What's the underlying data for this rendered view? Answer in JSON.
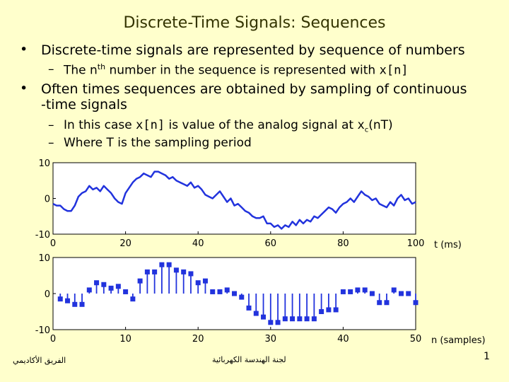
{
  "slide": {
    "title": "Discrete-Time Signals: Sequences",
    "bullets": [
      {
        "text": "Discrete-time signals are represented by sequence of numbers",
        "sub": [
          {
            "pre": "The n",
            "sup": "th",
            "post": " number in the sequence is represented with ",
            "code": "x[n]"
          }
        ]
      },
      {
        "text_line1": "Often times sequences are obtained by sampling of continuous",
        "text_line2": "-time signals",
        "sub": [
          {
            "pre": "In this case ",
            "code": "x[n]",
            "mid": " is value of the analog signal at ",
            "code2": "x",
            "sub": "c",
            "post": "(nT)"
          },
          {
            "text": "Where T is the sampling period"
          }
        ]
      }
    ],
    "footer_left": "الفريق الأكاديمي",
    "footer_center": "لجنة الهندسة الكهربائية",
    "page_number": "1"
  },
  "chart_data": [
    {
      "type": "line",
      "xlabel": "t (ms)",
      "xlim": [
        0,
        100
      ],
      "ylim": [
        -10,
        10
      ],
      "xticks": [
        "0",
        "20",
        "40",
        "60",
        "80",
        "100"
      ],
      "yticks": [
        "10",
        "0",
        "-10"
      ],
      "color": "#2233dd",
      "x": [
        0,
        1,
        2,
        3,
        4,
        5,
        6,
        7,
        8,
        9,
        10,
        11,
        12,
        13,
        14,
        15,
        16,
        17,
        18,
        19,
        20,
        21,
        22,
        23,
        24,
        25,
        26,
        27,
        28,
        29,
        30,
        31,
        32,
        33,
        34,
        35,
        36,
        37,
        38,
        39,
        40,
        41,
        42,
        43,
        44,
        45,
        46,
        47,
        48,
        49,
        50,
        51,
        52,
        53,
        54,
        55,
        56,
        57,
        58,
        59,
        60,
        61,
        62,
        63,
        64,
        65,
        66,
        67,
        68,
        69,
        70,
        71,
        72,
        73,
        74,
        75,
        76,
        77,
        78,
        79,
        80,
        81,
        82,
        83,
        84,
        85,
        86,
        87,
        88,
        89,
        90,
        91,
        92,
        93,
        94,
        95,
        96,
        97,
        98,
        99,
        100
      ],
      "y": [
        -1.5,
        -2,
        -2,
        -3,
        -3.5,
        -3.5,
        -2,
        0.5,
        1.5,
        2,
        3.5,
        2.5,
        3,
        2,
        3.5,
        2.5,
        1.5,
        0,
        -1,
        -1.5,
        1.5,
        3,
        4.5,
        5.5,
        6,
        7,
        6.5,
        6,
        7.5,
        7.5,
        7,
        6.5,
        5.5,
        6,
        5,
        4.5,
        4,
        3.5,
        4.5,
        3,
        3.5,
        2.5,
        1,
        0.5,
        0,
        1,
        2,
        0.5,
        -1,
        0,
        -2,
        -1.5,
        -2.5,
        -3.5,
        -4,
        -5,
        -5.5,
        -5.5,
        -5,
        -7,
        -7,
        -8,
        -7.5,
        -8.5,
        -7.5,
        -8,
        -6.5,
        -7.5,
        -6,
        -7,
        -6,
        -6.5,
        -5,
        -5.5,
        -4.5,
        -3.5,
        -2.5,
        -3,
        -4,
        -2.5,
        -1.5,
        -1,
        0,
        -1,
        0.5,
        2,
        1,
        0.5,
        -0.5,
        0,
        -1.5,
        -2,
        -2.5,
        -1,
        -2,
        0,
        1,
        -0.5,
        0,
        -1.5,
        -1
      ]
    },
    {
      "type": "stem",
      "xlabel": "n (samples)",
      "xlim": [
        0,
        50
      ],
      "ylim": [
        -10,
        10
      ],
      "xticks": [
        "0",
        "10",
        "20",
        "30",
        "40",
        "50"
      ],
      "yticks": [
        "10",
        "0",
        "-10"
      ],
      "color": "#2233dd",
      "x": [
        1,
        2,
        3,
        4,
        5,
        6,
        7,
        8,
        9,
        10,
        11,
        12,
        13,
        14,
        15,
        16,
        17,
        18,
        19,
        20,
        21,
        22,
        23,
        24,
        25,
        26,
        27,
        28,
        29,
        30,
        31,
        32,
        33,
        34,
        35,
        36,
        37,
        38,
        39,
        40,
        41,
        42,
        43,
        44,
        45,
        46,
        47,
        48,
        49,
        50
      ],
      "y": [
        -1.5,
        -2,
        -3,
        -3,
        1,
        3,
        2.5,
        1.5,
        2,
        0.5,
        -1.5,
        3.5,
        6,
        6,
        8,
        8,
        6.5,
        6,
        5.5,
        3,
        3.5,
        0.5,
        0.5,
        1,
        0,
        -1,
        -4,
        -5.5,
        -6.5,
        -8,
        -8,
        -7,
        -7,
        -7,
        -7,
        -7,
        -5,
        -4.5,
        -4.5,
        0.5,
        0.5,
        1,
        1,
        0,
        -2.5,
        -2.5,
        1,
        0,
        0,
        -2.5
      ]
    }
  ]
}
